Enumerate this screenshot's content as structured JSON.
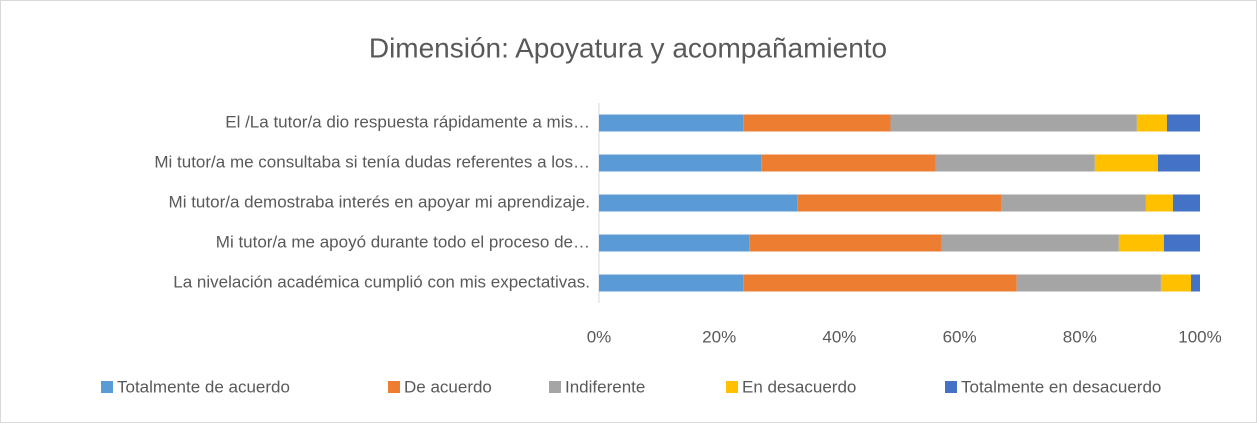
{
  "chart_data": {
    "type": "stacked-barh",
    "title": "Dimensión: Apoyatura y acompañamiento",
    "categories": [
      "El /La tutor/a dio respuesta rápidamente a mis…",
      "Mi tutor/a me consultaba si tenía dudas referentes a los…",
      "Mi tutor/a demostraba interés en apoyar mi aprendizaje.",
      "Mi tutor/a me apoyó durante todo el proceso de…",
      "La nivelación académica cumplió con mis expectativas."
    ],
    "series": [
      {
        "name": "Totalmente de acuerdo",
        "color": "#5b9bd5",
        "values": [
          24,
          27,
          33,
          25,
          24
        ]
      },
      {
        "name": "De acuerdo",
        "color": "#ed7d31",
        "values": [
          24.5,
          29,
          34,
          32,
          45.5
        ]
      },
      {
        "name": "Indiferente",
        "color": "#a5a5a5",
        "values": [
          41,
          26.5,
          24,
          29.5,
          24
        ]
      },
      {
        "name": "En desacuerdo",
        "color": "#ffc000",
        "values": [
          5,
          10.5,
          4.5,
          7.5,
          5
        ]
      },
      {
        "name": "Totalmente en desacuerdo",
        "color": "#4472c4",
        "values": [
          5.5,
          7,
          4.5,
          6,
          1.5
        ]
      }
    ],
    "xlim": [
      0,
      100
    ],
    "xticks": [
      {
        "value": 0,
        "label": "0%"
      },
      {
        "value": 20,
        "label": "20%"
      },
      {
        "value": 40,
        "label": "40%"
      },
      {
        "value": 60,
        "label": "60%"
      },
      {
        "value": 80,
        "label": "80%"
      },
      {
        "value": 100,
        "label": "100%"
      }
    ],
    "legend": "bottom"
  }
}
